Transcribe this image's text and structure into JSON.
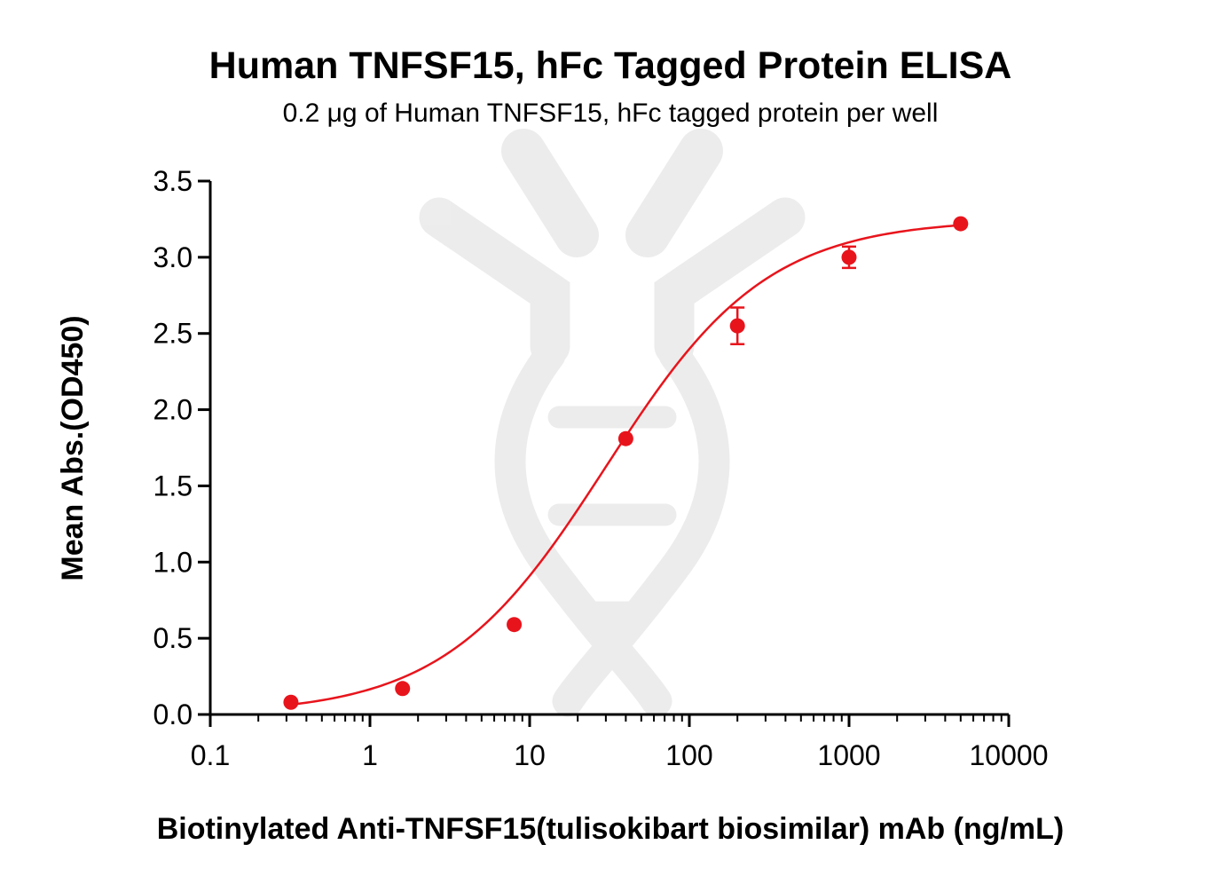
{
  "chart_data": {
    "type": "scatter",
    "title": "Human TNFSF15, hFc Tagged Protein ELISA",
    "subtitle": "0.2 μg of Human TNFSF15, hFc tagged protein per well",
    "xlabel": "Biotinylated Anti-TNFSF15(tulisokibart biosimilar) mAb (ng/mL)",
    "ylabel": "Mean Abs.(OD450)",
    "x_scale": "log",
    "xlim": [
      0.1,
      10000
    ],
    "ylim": [
      0,
      3.5
    ],
    "x_ticks": [
      "0.1",
      "1",
      "10",
      "100",
      "1000",
      "10000"
    ],
    "y_ticks": [
      "0.0",
      "0.5",
      "1.0",
      "1.5",
      "2.0",
      "2.5",
      "3.0",
      "3.5"
    ],
    "grid": false,
    "legend": "none",
    "series": [
      {
        "color": "#e8141c",
        "points": [
          {
            "x": 0.32,
            "y": 0.08,
            "err": 0.0
          },
          {
            "x": 1.6,
            "y": 0.17,
            "err": 0.0
          },
          {
            "x": 8,
            "y": 0.59,
            "err": 0.0
          },
          {
            "x": 40,
            "y": 1.81,
            "err": 0.0
          },
          {
            "x": 200,
            "y": 2.55,
            "err": 0.12
          },
          {
            "x": 1000,
            "y": 3.0,
            "err": 0.07
          },
          {
            "x": 5000,
            "y": 3.22,
            "err": 0.0
          }
        ],
        "fit": {
          "bottom": 0.0,
          "top": 3.25,
          "ec50": 30,
          "hill": 0.86
        }
      }
    ]
  }
}
